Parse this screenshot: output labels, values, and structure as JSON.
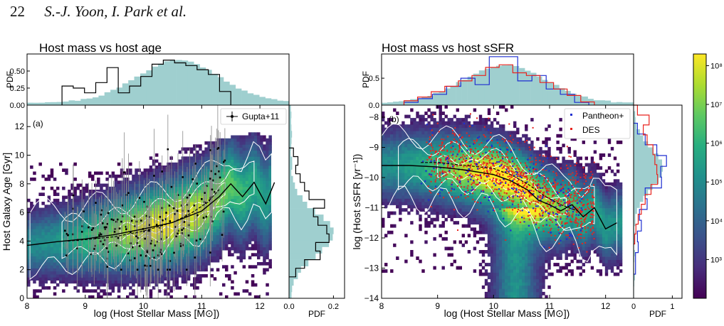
{
  "header": {
    "page_number": "22",
    "authors": "S.-J. Yoon, I. Park et al."
  },
  "colors": {
    "viridis": [
      "#440154",
      "#472d7b",
      "#3b528b",
      "#2c728e",
      "#21918c",
      "#28ae80",
      "#5ec962",
      "#addc30",
      "#fde725"
    ],
    "gupta": "#000000",
    "pantheon": "#1f2fd0",
    "des": "#e8231e",
    "host_hist": "#9fcfcf",
    "contour": "#ffffff",
    "median": "#000000"
  },
  "chart_data": [
    {
      "type": "heatmap",
      "panel": "a",
      "panel_label": "(a)",
      "title": "Host mass vs host age",
      "xlabel": "log (Host Stellar Mass [M⊙])",
      "ylabel": "Host Galaxy Age [Gyr]",
      "xlim": [
        8,
        12.5
      ],
      "ylim": [
        0,
        13.5
      ],
      "xticks": [
        "8",
        "9",
        "10",
        "11",
        "12"
      ],
      "yticks": [
        "0",
        "2",
        "4",
        "6",
        "8",
        "10",
        "12"
      ],
      "legend": {
        "position": "top-right",
        "entries": [
          "Gupta+11"
        ]
      },
      "top_hist": {
        "ylabel": "PDF",
        "ylim": [
          0,
          0.75
        ],
        "yticks": [
          "0.00",
          "0.25",
          "0.50"
        ]
      },
      "side_hist": {
        "xlabel": "PDF",
        "xlim": [
          0,
          0.25
        ],
        "xticks": [
          "0.0",
          "0.2"
        ]
      },
      "median_line": {
        "x": [
          8.0,
          8.5,
          9.0,
          9.5,
          10.0,
          10.5,
          11.0,
          11.3,
          11.5,
          11.7,
          11.9,
          12.1,
          12.25
        ],
        "y": [
          3.7,
          3.95,
          4.15,
          4.45,
          4.85,
          5.3,
          6.1,
          7.1,
          8.0,
          7.1,
          8.1,
          6.6,
          8.1
        ]
      },
      "median_line_gupta": {
        "x": [
          8.7,
          9.0,
          9.5,
          10.0,
          10.5,
          10.8,
          11.1,
          11.3
        ],
        "y": [
          4.0,
          4.1,
          4.3,
          4.7,
          5.3,
          5.9,
          6.7,
          7.6
        ]
      }
    },
    {
      "type": "heatmap",
      "panel": "b",
      "panel_label": "(b)",
      "title": "Host mass vs host sSFR",
      "xlabel": "log (Host Stellar Mass [M⊙])",
      "ylabel": "log (Host sSFR [yr⁻¹])",
      "xlim": [
        8,
        12.5
      ],
      "ylim": [
        -14,
        -7.6
      ],
      "xticks": [
        "8",
        "9",
        "10",
        "11",
        "12"
      ],
      "yticks": [
        "-14",
        "-13",
        "-12",
        "-11",
        "-10",
        "-9",
        "-8"
      ],
      "legend": {
        "position": "top-right",
        "entries": [
          "Pantheon+",
          "DES"
        ]
      },
      "top_hist": {
        "ylabel": "PDF",
        "ylim": [
          0,
          0.95
        ],
        "yticks": [
          "0.0",
          "0.5"
        ]
      },
      "side_hist": {
        "xlabel": "PDF",
        "xlim": [
          0,
          1.25
        ],
        "xticks": [
          "0",
          "1"
        ]
      },
      "median_line": {
        "x": [
          8.0,
          8.5,
          9.0,
          9.5,
          10.0,
          10.3,
          10.6,
          10.8,
          11.0,
          11.2,
          11.4,
          11.6,
          11.8,
          12.0,
          12.2
        ],
        "y": [
          -9.6,
          -9.6,
          -9.65,
          -9.75,
          -9.9,
          -10.1,
          -10.4,
          -10.75,
          -10.9,
          -11.1,
          -10.9,
          -11.3,
          -11.0,
          -11.7,
          -11.5
        ]
      },
      "median_line_sn": {
        "x": [
          8.7,
          9.0,
          9.5,
          10.0,
          10.3,
          10.6,
          10.9,
          11.2,
          11.5
        ],
        "y": [
          -9.5,
          -9.5,
          -9.6,
          -9.7,
          -9.9,
          -10.2,
          -10.6,
          -10.9,
          -11.1
        ]
      }
    }
  ],
  "colorbar": {
    "scale": "log",
    "range": [
      100,
      200000000
    ],
    "tick_labels": [
      "10³",
      "10⁴",
      "10⁵",
      "10⁶",
      "10⁷",
      "10⁸"
    ]
  }
}
